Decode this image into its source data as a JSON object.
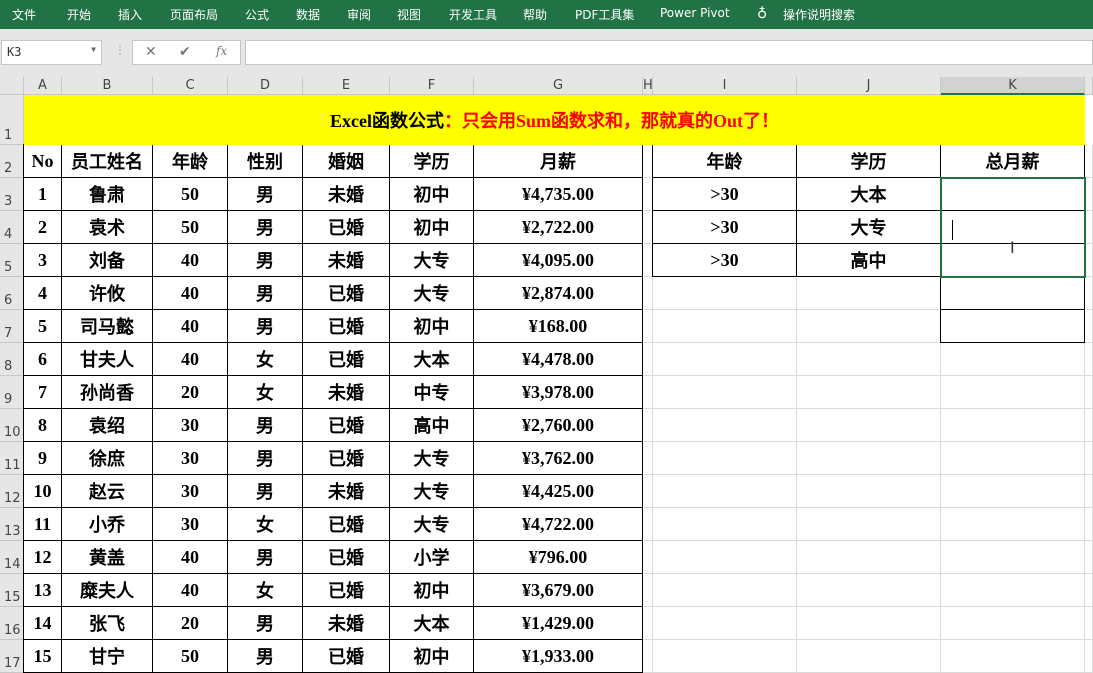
{
  "ribbon": {
    "tabs": [
      "文件",
      "开始",
      "插入",
      "页面布局",
      "公式",
      "数据",
      "审阅",
      "视图",
      "开发工具",
      "帮助",
      "PDF工具集",
      "Power Pivot"
    ],
    "search": "操作说明搜索",
    "search_icon": "lightbulb-icon"
  },
  "formula_bar": {
    "name_box": "K3",
    "cancel": "✕",
    "enter": "✔",
    "fx": "fx",
    "value": ""
  },
  "columns": [
    "A",
    "B",
    "C",
    "D",
    "E",
    "F",
    "G",
    "H",
    "I",
    "J",
    "K"
  ],
  "row_numbers": [
    "1",
    "2",
    "3",
    "4",
    "5",
    "6",
    "7",
    "8",
    "9",
    "10",
    "11",
    "12",
    "13",
    "14",
    "15",
    "16",
    "17"
  ],
  "title": {
    "black": "Excel函数公式",
    "red": "：只会用Sum函数求和，那就真的Out了！"
  },
  "table": {
    "headers": [
      "No",
      "员工姓名",
      "年龄",
      "性别",
      "婚姻",
      "学历",
      "月薪"
    ],
    "rows": [
      [
        "1",
        "鲁肃",
        "50",
        "男",
        "未婚",
        "初中",
        "¥4,735.00"
      ],
      [
        "2",
        "袁术",
        "50",
        "男",
        "已婚",
        "初中",
        "¥2,722.00"
      ],
      [
        "3",
        "刘备",
        "40",
        "男",
        "未婚",
        "大专",
        "¥4,095.00"
      ],
      [
        "4",
        "许攸",
        "40",
        "男",
        "已婚",
        "大专",
        "¥2,874.00"
      ],
      [
        "5",
        "司马懿",
        "40",
        "男",
        "已婚",
        "初中",
        "¥168.00"
      ],
      [
        "6",
        "甘夫人",
        "40",
        "女",
        "已婚",
        "大本",
        "¥4,478.00"
      ],
      [
        "7",
        "孙尚香",
        "20",
        "女",
        "未婚",
        "中专",
        "¥3,978.00"
      ],
      [
        "8",
        "袁绍",
        "30",
        "男",
        "已婚",
        "高中",
        "¥2,760.00"
      ],
      [
        "9",
        "徐庶",
        "30",
        "男",
        "已婚",
        "大专",
        "¥3,762.00"
      ],
      [
        "10",
        "赵云",
        "30",
        "男",
        "未婚",
        "大专",
        "¥4,425.00"
      ],
      [
        "11",
        "小乔",
        "30",
        "女",
        "已婚",
        "大专",
        "¥4,722.00"
      ],
      [
        "12",
        "黄盖",
        "40",
        "男",
        "已婚",
        "小学",
        "¥796.00"
      ],
      [
        "13",
        "糜夫人",
        "40",
        "女",
        "已婚",
        "初中",
        "¥3,679.00"
      ],
      [
        "14",
        "张飞",
        "20",
        "男",
        "未婚",
        "大本",
        "¥1,429.00"
      ],
      [
        "15",
        "甘宁",
        "50",
        "男",
        "已婚",
        "初中",
        "¥1,933.00"
      ]
    ]
  },
  "criteria": {
    "headers": [
      "年龄",
      "学历",
      "总月薪"
    ],
    "rows": [
      [
        ">30",
        "大本",
        ""
      ],
      [
        ">30",
        "大专",
        ""
      ],
      [
        ">30",
        "高中",
        ""
      ]
    ]
  },
  "accent": "#217346"
}
